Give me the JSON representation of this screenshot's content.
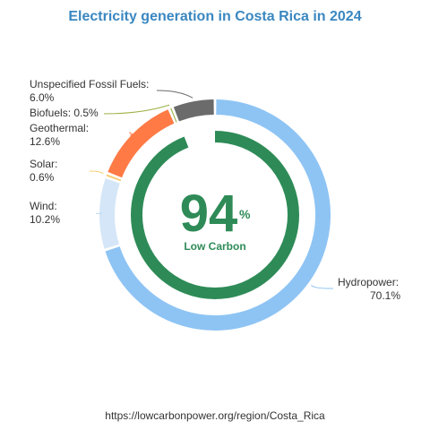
{
  "chart_data": {
    "type": "pie",
    "title": "Electricity generation in Costa Rica in 2024",
    "unit": "%",
    "slices": [
      {
        "name": "Hydropower:",
        "value": 70.1,
        "label": "70.1%",
        "color": "#8ec4f4"
      },
      {
        "name": "Wind:",
        "value": 10.2,
        "label": "10.2%",
        "color": "#d4e6f7"
      },
      {
        "name": "Solar:",
        "value": 0.6,
        "label": "0.6%",
        "color": "#f7cb6e"
      },
      {
        "name": "Geothermal:",
        "value": 12.6,
        "label": "12.6%",
        "color": "#ff7a45"
      },
      {
        "name": "Biofuels:",
        "value": 0.5,
        "label": "0.5%",
        "color": "#9bb040"
      },
      {
        "name": "Unspecified Fossil Fuels:",
        "value": 6.0,
        "label": "6.0%",
        "color": "#6b6b6b"
      }
    ],
    "center": {
      "value": 94,
      "value_text": "94",
      "unit": "%",
      "caption": "Low Carbon",
      "color": "#2e8b57"
    }
  },
  "source": "https://lowcarbonpower.org/region/Costa_Rica"
}
